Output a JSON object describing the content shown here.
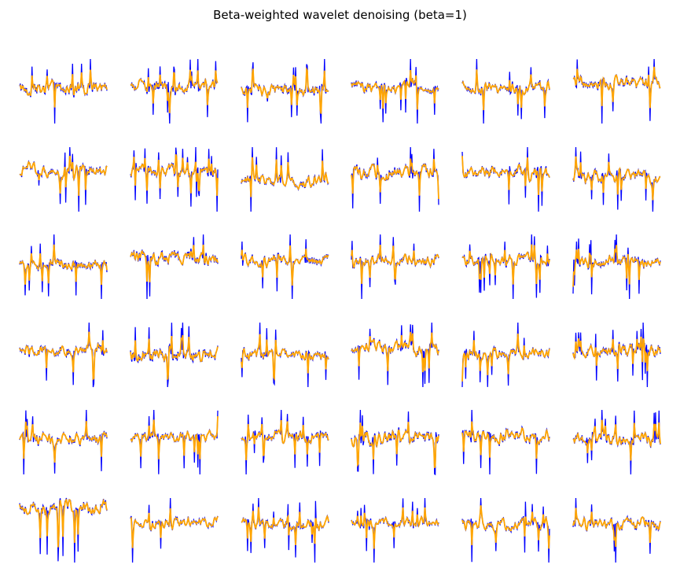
{
  "title": "Beta-weighted wavelet denoising (beta=1)",
  "chart_data": {
    "type": "line",
    "title": "Beta-weighted wavelet denoising (beta=1)",
    "rows": 6,
    "cols": 6,
    "axes_visible": false,
    "samples_per_panel": 128,
    "series": [
      {
        "role": "original",
        "color": "#0000ff"
      },
      {
        "role": "denoised",
        "color": "#ffa500"
      }
    ]
  }
}
